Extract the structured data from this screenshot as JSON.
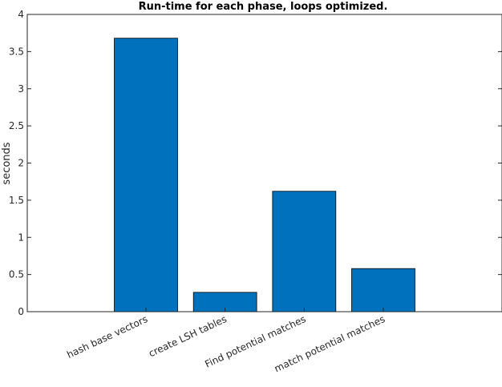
{
  "chart_data": {
    "type": "bar",
    "title": "Run-time for each phase, loops optimized.",
    "xlabel": "",
    "ylabel": "seconds",
    "categories": [
      "hash base vectors",
      "create LSH tables",
      "Find potential matches",
      "match potential matches"
    ],
    "values": [
      3.68,
      0.26,
      1.62,
      0.58
    ],
    "ylim": [
      0,
      4
    ],
    "yticks": [
      "0",
      "0.5",
      "1",
      "1.5",
      "2",
      "2.5",
      "3",
      "3.5",
      "4"
    ],
    "bar_color": "#0072BD",
    "grid": false
  }
}
